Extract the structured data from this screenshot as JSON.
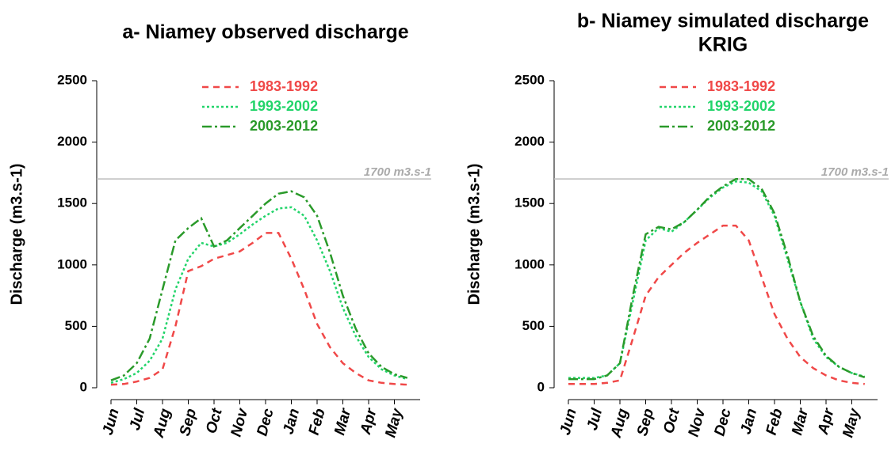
{
  "chart_data": [
    {
      "type": "line",
      "title": [
        "a- Niamey observed discharge"
      ],
      "ylabel": "Discharge (m3.s-1)",
      "categories": [
        "Jun",
        null,
        "Jul",
        null,
        "Aug",
        null,
        "Sep",
        null,
        "Oct",
        null,
        "Nov",
        null,
        "Dec",
        null,
        "Jan",
        null,
        "Feb",
        null,
        "Mar",
        null,
        "Apr",
        null,
        "May",
        null
      ],
      "series": [
        {
          "name": "1983-1992",
          "color": "#f04848",
          "dash": "8,6",
          "values": [
            25,
            30,
            50,
            80,
            150,
            500,
            950,
            990,
            1050,
            1080,
            1110,
            1180,
            1260,
            1260,
            1050,
            800,
            520,
            330,
            200,
            120,
            60,
            40,
            30,
            25
          ]
        },
        {
          "name": "1993-2002",
          "color": "#22d46a",
          "dash": "3,3",
          "values": [
            40,
            70,
            120,
            220,
            400,
            800,
            1050,
            1180,
            1150,
            1180,
            1250,
            1330,
            1400,
            1460,
            1470,
            1400,
            1200,
            950,
            650,
            420,
            250,
            150,
            100,
            70
          ]
        },
        {
          "name": "2003-2012",
          "color": "#2a9a2a",
          "dash": "12,4,3,4",
          "values": [
            60,
            100,
            200,
            400,
            800,
            1200,
            1300,
            1380,
            1150,
            1200,
            1300,
            1400,
            1500,
            1580,
            1600,
            1550,
            1400,
            1100,
            750,
            480,
            280,
            170,
            110,
            80
          ]
        }
      ],
      "hline": {
        "value": 1700,
        "label": "1700 m3.s-1"
      },
      "ylim": [
        0,
        2500
      ],
      "yticks": [
        0,
        500,
        1000,
        1500,
        2000,
        2500
      ],
      "legend": "top"
    },
    {
      "type": "line",
      "title": [
        "b- Niamey simulated discharge",
        "KRIG"
      ],
      "ylabel": "Discharge (m3.s-1)",
      "categories": [
        "Jun",
        null,
        "Jul",
        null,
        "Aug",
        null,
        "Sep",
        null,
        "Oct",
        null,
        "Nov",
        null,
        "Dec",
        null,
        "Jan",
        null,
        "Feb",
        null,
        "Mar",
        null,
        "Apr",
        null,
        "May",
        null
      ],
      "series": [
        {
          "name": "1983-1992",
          "color": "#f04848",
          "dash": "8,6",
          "values": [
            30,
            30,
            30,
            40,
            60,
            400,
            750,
            900,
            1000,
            1100,
            1180,
            1250,
            1320,
            1320,
            1200,
            900,
            600,
            400,
            250,
            160,
            100,
            60,
            40,
            30
          ]
        },
        {
          "name": "1993-2002",
          "color": "#22d46a",
          "dash": "3,3",
          "values": [
            80,
            80,
            80,
            100,
            200,
            700,
            1200,
            1300,
            1270,
            1350,
            1450,
            1550,
            1630,
            1680,
            1670,
            1600,
            1400,
            1050,
            700,
            400,
            250,
            170,
            120,
            90
          ]
        },
        {
          "name": "2003-2012",
          "color": "#2a9a2a",
          "dash": "12,4,3,4",
          "values": [
            70,
            70,
            70,
            100,
            200,
            750,
            1250,
            1310,
            1290,
            1350,
            1450,
            1560,
            1640,
            1700,
            1700,
            1620,
            1420,
            1080,
            700,
            420,
            260,
            170,
            120,
            85
          ]
        }
      ],
      "hline": {
        "value": 1700,
        "label": "1700 m3.s-1"
      },
      "ylim": [
        0,
        2500
      ],
      "yticks": [
        0,
        500,
        1000,
        1500,
        2000,
        2500
      ],
      "legend": "top"
    }
  ]
}
